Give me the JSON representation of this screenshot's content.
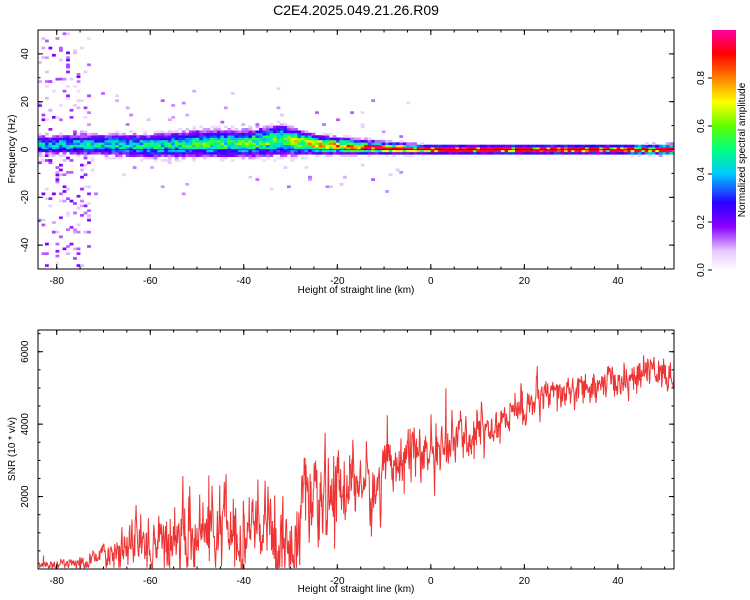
{
  "chart_data": [
    {
      "type": "heatmap",
      "title": "C2E4.2025.049.21.26.R09",
      "xlabel": "Height of straight line (km)",
      "ylabel": "Frequency (Hz)",
      "xlim": [
        -84,
        52
      ],
      "ylim": [
        -50,
        50
      ],
      "x_ticks": [
        -80,
        -60,
        -40,
        -20,
        0,
        20,
        40
      ],
      "y_ticks": [
        -40,
        -20,
        0,
        20,
        40
      ],
      "colorbar": {
        "label": "Normalized spectral amplitude",
        "range": [
          0,
          1
        ],
        "ticks": [
          0.0,
          0.2,
          0.4,
          0.6,
          0.8
        ],
        "colors": [
          "#ffffff",
          "#e6c8ff",
          "#8a00ff",
          "#2a00ff",
          "#00c8ff",
          "#00ff80",
          "#60ff00",
          "#ffff00",
          "#ff8000",
          "#ff0000",
          "#ff00a0"
        ]
      },
      "ridge_profile": [
        {
          "x": -84,
          "center_hz": 2.0,
          "width_hz": 7,
          "amp": 0.45
        },
        {
          "x": -70,
          "center_hz": 2.0,
          "width_hz": 8,
          "amp": 0.5
        },
        {
          "x": -60,
          "center_hz": 1.5,
          "width_hz": 9,
          "amp": 0.5
        },
        {
          "x": -50,
          "center_hz": 2.5,
          "width_hz": 10,
          "amp": 0.55
        },
        {
          "x": -40,
          "center_hz": 2.5,
          "width_hz": 10,
          "amp": 0.6
        },
        {
          "x": -32,
          "center_hz": 4.0,
          "width_hz": 11,
          "amp": 0.65
        },
        {
          "x": -25,
          "center_hz": 2.0,
          "width_hz": 7,
          "amp": 0.8
        },
        {
          "x": -15,
          "center_hz": 1.0,
          "width_hz": 5,
          "amp": 0.85
        },
        {
          "x": 0,
          "center_hz": 0.0,
          "width_hz": 3,
          "amp": 0.92
        },
        {
          "x": 20,
          "center_hz": 0.0,
          "width_hz": 3,
          "amp": 0.95
        },
        {
          "x": 40,
          "center_hz": 0.0,
          "width_hz": 3,
          "amp": 0.92
        },
        {
          "x": 52,
          "center_hz": 0.0,
          "width_hz": 4,
          "amp": 0.85
        }
      ],
      "noise_region": {
        "x_range": [
          -84,
          -73
        ],
        "freq_range": [
          -50,
          50
        ],
        "amp": 0.15
      }
    },
    {
      "type": "line",
      "xlabel": "Height of straight line (km)",
      "ylabel": "SNR (10 * v/v)",
      "xlim": [
        -84,
        52
      ],
      "ylim": [
        0,
        6600
      ],
      "x_ticks": [
        -80,
        -60,
        -40,
        -20,
        0,
        20,
        40
      ],
      "y_ticks": [
        2000,
        4000,
        6000
      ],
      "color": "#ee3333",
      "trend": {
        "x": [
          -84,
          -75,
          -70,
          -65,
          -60,
          -55,
          -50,
          -45,
          -40,
          -35,
          -30,
          -27,
          -25,
          -20,
          -15,
          -12,
          -10,
          -5,
          0,
          5,
          10,
          15,
          20,
          25,
          30,
          35,
          40,
          45,
          48,
          50,
          52
        ],
        "y": [
          100,
          150,
          400,
          600,
          700,
          800,
          1000,
          1100,
          1000,
          1100,
          600,
          1800,
          1500,
          2200,
          2500,
          1900,
          3000,
          3200,
          3200,
          3500,
          3800,
          4100,
          4500,
          4700,
          4900,
          5000,
          5200,
          5300,
          5600,
          5300,
          5300
        ]
      },
      "noise_amplitude": {
        "x": [
          -84,
          -72,
          -60,
          -45,
          -30,
          -20,
          -10,
          0,
          20,
          40,
          52
        ],
        "y": [
          80,
          200,
          700,
          900,
          1000,
          900,
          700,
          600,
          450,
          350,
          400
        ]
      }
    }
  ]
}
